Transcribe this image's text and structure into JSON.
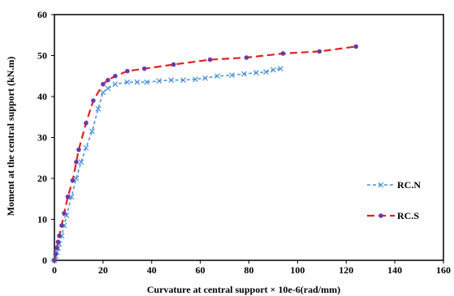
{
  "chart_data": {
    "type": "line",
    "title": "",
    "xlabel": "Curvature at central support × 10e-6(rad/mm)",
    "ylabel": "Moment at the central support (kN.m)",
    "xlim": [
      0,
      160
    ],
    "ylim": [
      0,
      60
    ],
    "xticks": [
      "0",
      "20",
      "40",
      "60",
      "80",
      "100",
      "120",
      "140",
      "160"
    ],
    "yticks": [
      "0",
      "10",
      "20",
      "30",
      "40",
      "50",
      "60"
    ],
    "grid": false,
    "legend_placement": "right",
    "series": [
      {
        "name": "RC.N",
        "color": "#4a90d9",
        "line_style": "dashed",
        "marker": "x",
        "x": [
          0,
          0.5,
          1,
          1.5,
          2,
          3,
          4,
          5,
          7,
          9,
          11,
          13,
          15.5,
          18,
          20,
          22,
          25,
          30,
          34,
          38,
          43,
          48,
          53,
          58,
          62,
          67,
          73,
          78,
          83,
          87,
          90,
          93
        ],
        "y": [
          0,
          1,
          2,
          3,
          4,
          6,
          8.5,
          11,
          15.5,
          20,
          24,
          27.5,
          31.5,
          37,
          41,
          42,
          43,
          43.5,
          43.5,
          43.5,
          43.8,
          44,
          44,
          44.2,
          44.5,
          45,
          45.2,
          45.5,
          45.8,
          46,
          46.5,
          46.8
        ]
      },
      {
        "name": "RC.S",
        "color": "#e02020",
        "marker_color": "#6a3aa8",
        "line_style": "dashed",
        "marker": "circle",
        "x": [
          0,
          0.5,
          1,
          1.5,
          2,
          3,
          4,
          5.5,
          7.5,
          9,
          10,
          13,
          16,
          20,
          22,
          25,
          30,
          37,
          49,
          64,
          79,
          94,
          109,
          124
        ],
        "y": [
          0,
          1.5,
          3,
          4.5,
          6,
          8.5,
          11.5,
          15.5,
          19.5,
          24,
          27,
          33.5,
          39,
          43,
          44,
          45,
          46.2,
          46.8,
          47.8,
          49,
          49.5,
          50.5,
          51,
          52.2
        ]
      }
    ]
  }
}
